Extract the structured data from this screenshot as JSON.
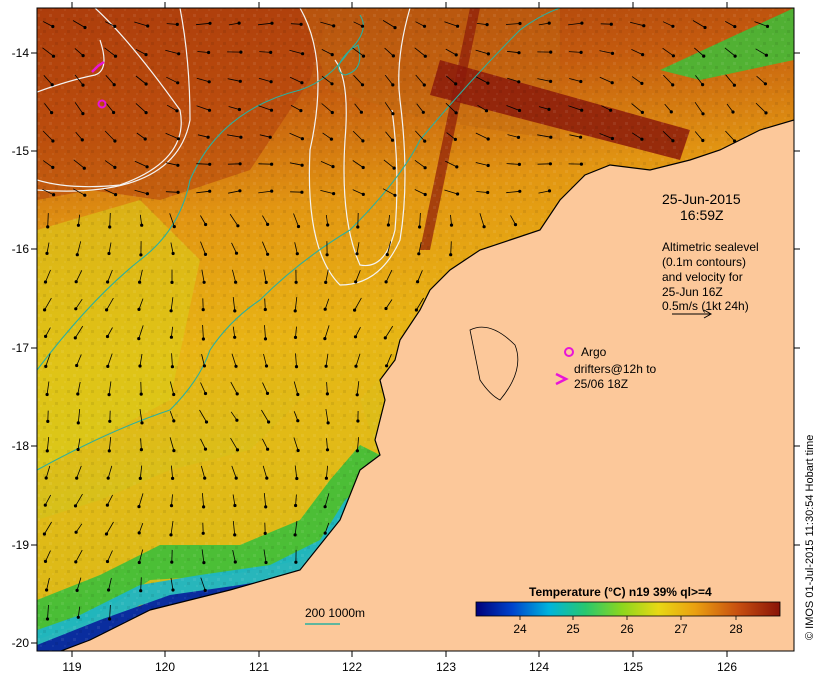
{
  "map": {
    "date": "25-Jun-2015",
    "time": "16:59Z",
    "sealevel_note": [
      "Altimetric sealevel",
      "(0.1m contours)",
      "and velocity for",
      "25-Jun 16Z",
      "0.5m/s (1kt 24h)"
    ],
    "legend_argo": "Argo",
    "legend_drifters": [
      "drifters@12h to",
      "25/06 18Z"
    ],
    "depth_legend": "200  1000m",
    "colorbar_title": "Temperature (°C) n19 39% ql>=4",
    "colorbar_ticks": [
      "24",
      "25",
      "26",
      "27",
      "28"
    ],
    "side_credit": "© IMOS 01-Jul-2015 11:30:54 Hobart time",
    "lon_ticks": [
      "119",
      "120",
      "121",
      "122",
      "123",
      "124",
      "125",
      "126"
    ],
    "lat_ticks": [
      "-14",
      "-15",
      "-16",
      "-17",
      "-18",
      "-19",
      "-20"
    ],
    "colors": {
      "land": "#fcc89a",
      "warm_dark": "#8b1a0a",
      "warm": "#c4520c",
      "mid": "#e8a610",
      "cool_yellow": "#d6de1a",
      "green": "#3cbf3a",
      "cyan": "#1fb5c4",
      "blue": "#0a2d9e",
      "isobath": "#2ab0a0",
      "marker": "#e815d8"
    }
  }
}
